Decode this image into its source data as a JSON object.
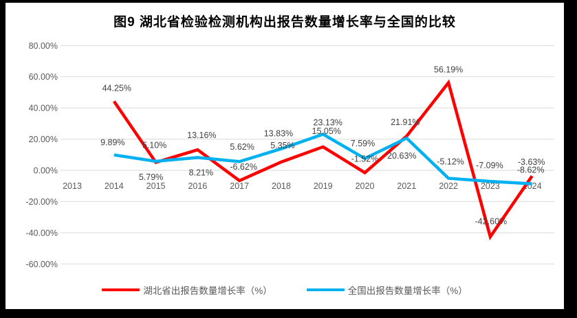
{
  "chart_data": {
    "type": "line",
    "title": "图9 湖北省检验检测机构出报告数量增长率与全国的比较",
    "categories": [
      "2013",
      "2014",
      "2015",
      "2016",
      "2017",
      "2018",
      "2019",
      "2020",
      "2021",
      "2022",
      "2023",
      "2024"
    ],
    "y_axis": {
      "min": -60,
      "max": 80,
      "step": 20,
      "ticks": [
        {
          "value": 80,
          "label": "80.00%"
        },
        {
          "value": 60,
          "label": "60.00%"
        },
        {
          "value": 40,
          "label": "40.00%"
        },
        {
          "value": 20,
          "label": "20.00%"
        },
        {
          "value": 0,
          "label": "0.00%"
        },
        {
          "value": -20,
          "label": "-20.00%"
        },
        {
          "value": -40,
          "label": "-40.00%"
        },
        {
          "value": -60,
          "label": "-60.00%"
        }
      ]
    },
    "grid": true,
    "legend_position": "bottom",
    "series": [
      {
        "key": "hubei",
        "name": "湖北省出报告数量增长率（%）",
        "color": "#FF0000",
        "points": [
          {
            "year": "2013",
            "value": null
          },
          {
            "year": "2014",
            "value": 44.25,
            "label": "44.25%",
            "dx": 4,
            "dy": -15
          },
          {
            "year": "2015",
            "value": 5.1,
            "label": "5.10%",
            "dx": -2,
            "dy": -21
          },
          {
            "year": "2016",
            "value": 13.16,
            "label": "13.16%",
            "dx": 6,
            "dy": -17
          },
          {
            "year": "2017",
            "value": -6.62,
            "label": "-6.62%",
            "dx": 6,
            "dy": -16
          },
          {
            "year": "2018",
            "value": 5.35,
            "label": "5.35%",
            "dx": 2,
            "dy": -20
          },
          {
            "year": "2019",
            "value": 15.05,
            "label": "15.05%",
            "dx": 5,
            "dy": -19
          },
          {
            "year": "2020",
            "value": -1.52,
            "label": "-1.52%",
            "dx": 0,
            "dy": -16
          },
          {
            "year": "2021",
            "value": 21.91,
            "label": "21.91%",
            "dx": -2,
            "dy": -16
          },
          {
            "year": "2022",
            "value": 56.19,
            "label": "56.19%",
            "dx": 0,
            "dy": -15
          },
          {
            "year": "2023",
            "value": -42.6,
            "label": "-42.60%",
            "dx": 1,
            "dy": -18
          },
          {
            "year": "2024",
            "value": -3.63,
            "label": "-3.63%",
            "dx": -1,
            "dy": -16
          }
        ]
      },
      {
        "key": "national",
        "name": "全国出报告数量增长率（%）",
        "color": "#00B0F0",
        "points": [
          {
            "year": "2013",
            "value": null
          },
          {
            "year": "2014",
            "value": 9.89,
            "label": "9.89%",
            "dx": -2,
            "dy": -14
          },
          {
            "year": "2015",
            "value": 5.79,
            "label": "5.79%",
            "dx": -7,
            "dy": 27
          },
          {
            "year": "2016",
            "value": 8.21,
            "label": "8.21%",
            "dx": 5,
            "dy": 26
          },
          {
            "year": "2017",
            "value": 5.62,
            "label": "5.62%",
            "dx": 4,
            "dy": -17
          },
          {
            "year": "2018",
            "value": 13.83,
            "label": "13.83%",
            "dx": -4,
            "dy": -18
          },
          {
            "year": "2019",
            "value": 23.13,
            "label": "23.13%",
            "dx": 7,
            "dy": -13
          },
          {
            "year": "2020",
            "value": 7.59,
            "label": "7.59%",
            "dx": -3,
            "dy": -18
          },
          {
            "year": "2021",
            "value": 20.63,
            "label": "20.63%",
            "dx": -7,
            "dy": 30
          },
          {
            "year": "2022",
            "value": -5.12,
            "label": "-5.12%",
            "dx": 3,
            "dy": -20
          },
          {
            "year": "2023",
            "value": -7.09,
            "label": "-7.09%",
            "dx": -1,
            "dy": -19
          },
          {
            "year": "2024",
            "value": -8.62,
            "label": "-8.62%",
            "dx": -2,
            "dy": -16
          }
        ]
      }
    ],
    "style": {
      "background": "#FFFFFF",
      "frame_color": "#000000",
      "gridline_color": "#D9D9D9",
      "axis_text_color": "#595959",
      "data_label_color": "#404040",
      "title_color": "#000000"
    }
  }
}
